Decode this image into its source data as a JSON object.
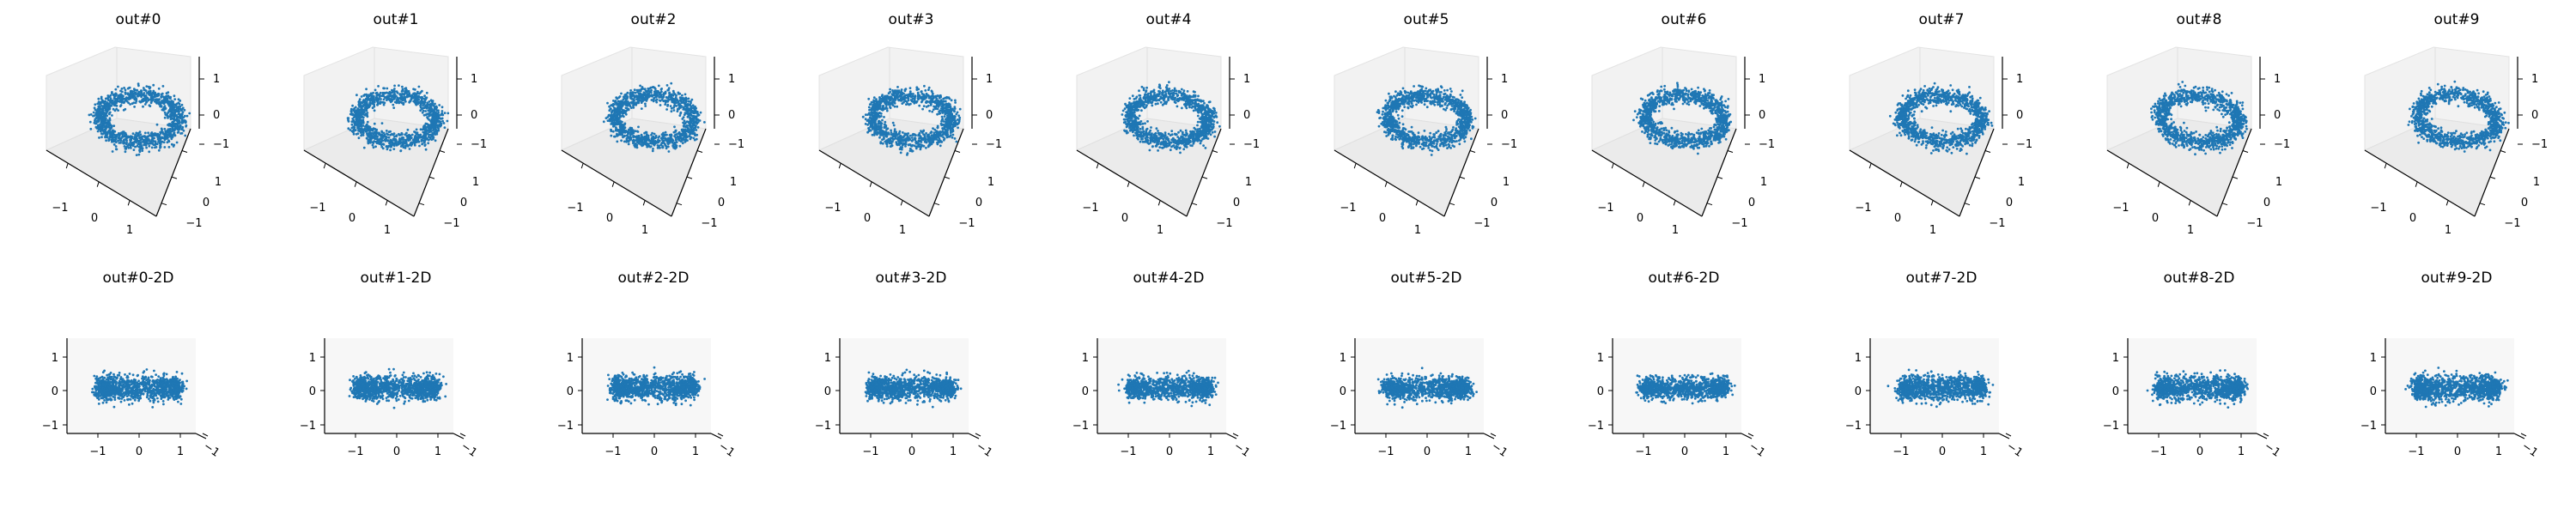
{
  "chart_data": {
    "type": "scatter",
    "rows": [
      {
        "kind": "3d",
        "panels": [
          {
            "title": "out#0",
            "xticks": [
              "−1",
              "0",
              "1"
            ],
            "yticks": [
              "−1",
              "0",
              "1"
            ],
            "zticks": [
              "1",
              "0",
              "−1"
            ],
            "color": "#1f77b4"
          },
          {
            "title": "out#1",
            "xticks": [
              "−1",
              "0",
              "1"
            ],
            "yticks": [
              "−1",
              "0",
              "1"
            ],
            "zticks": [
              "1",
              "0",
              "−1"
            ],
            "color": "#1f77b4"
          },
          {
            "title": "out#2",
            "xticks": [
              "−1",
              "0",
              "1"
            ],
            "yticks": [
              "−1",
              "0",
              "1"
            ],
            "zticks": [
              "1",
              "0",
              "−1"
            ],
            "color": "#1f77b4"
          },
          {
            "title": "out#3",
            "xticks": [
              "−1",
              "0",
              "1"
            ],
            "yticks": [
              "−1",
              "0",
              "1"
            ],
            "zticks": [
              "1",
              "0",
              "−1"
            ],
            "color": "#1f77b4"
          },
          {
            "title": "out#4",
            "xticks": [
              "−1",
              "0",
              "1"
            ],
            "yticks": [
              "−1",
              "0",
              "1"
            ],
            "zticks": [
              "1",
              "0",
              "−1"
            ],
            "color": "#1f77b4"
          },
          {
            "title": "out#5",
            "xticks": [
              "−1",
              "0",
              "1"
            ],
            "yticks": [
              "−1",
              "0",
              "1"
            ],
            "zticks": [
              "1",
              "0",
              "−1"
            ],
            "color": "#1f77b4"
          },
          {
            "title": "out#6",
            "xticks": [
              "−1",
              "0",
              "1"
            ],
            "yticks": [
              "−1",
              "0",
              "1"
            ],
            "zticks": [
              "1",
              "0",
              "−1"
            ],
            "color": "#1f77b4"
          },
          {
            "title": "out#7",
            "xticks": [
              "−1",
              "0",
              "1"
            ],
            "yticks": [
              "−1",
              "0",
              "1"
            ],
            "zticks": [
              "1",
              "0",
              "−1"
            ],
            "color": "#1f77b4"
          },
          {
            "title": "out#8",
            "xticks": [
              "−1",
              "0",
              "1"
            ],
            "yticks": [
              "−1",
              "0",
              "1"
            ],
            "zticks": [
              "1",
              "0",
              "−1"
            ],
            "color": "#1f77b4"
          },
          {
            "title": "out#9",
            "xticks": [
              "−1",
              "0",
              "1"
            ],
            "yticks": [
              "−1",
              "0",
              "1"
            ],
            "zticks": [
              "1",
              "0",
              "−1"
            ],
            "color": "#1f77b4"
          }
        ]
      },
      {
        "kind": "2d",
        "panels": [
          {
            "title": "out#0-2D",
            "xticks": [
              "−1",
              "0",
              "1"
            ],
            "yticks": [
              "1",
              "0",
              "−1"
            ],
            "corner_tick": "−1",
            "color": "#1f77b4"
          },
          {
            "title": "out#1-2D",
            "xticks": [
              "−1",
              "0",
              "1"
            ],
            "yticks": [
              "1",
              "0",
              "−1"
            ],
            "corner_tick": "−1",
            "color": "#1f77b4"
          },
          {
            "title": "out#2-2D",
            "xticks": [
              "−1",
              "0",
              "1"
            ],
            "yticks": [
              "1",
              "0",
              "−1"
            ],
            "corner_tick": "−1",
            "color": "#1f77b4"
          },
          {
            "title": "out#3-2D",
            "xticks": [
              "−1",
              "0",
              "1"
            ],
            "yticks": [
              "1",
              "0",
              "−1"
            ],
            "corner_tick": "−1",
            "color": "#1f77b4"
          },
          {
            "title": "out#4-2D",
            "xticks": [
              "−1",
              "0",
              "1"
            ],
            "yticks": [
              "1",
              "0",
              "−1"
            ],
            "corner_tick": "−1",
            "color": "#1f77b4"
          },
          {
            "title": "out#5-2D",
            "xticks": [
              "−1",
              "0",
              "1"
            ],
            "yticks": [
              "1",
              "0",
              "−1"
            ],
            "corner_tick": "−1",
            "color": "#1f77b4"
          },
          {
            "title": "out#6-2D",
            "xticks": [
              "−1",
              "0",
              "1"
            ],
            "yticks": [
              "1",
              "0",
              "−1"
            ],
            "corner_tick": "−1",
            "color": "#1f77b4"
          },
          {
            "title": "out#7-2D",
            "xticks": [
              "−1",
              "0",
              "1"
            ],
            "yticks": [
              "1",
              "0",
              "−1"
            ],
            "corner_tick": "−1",
            "color": "#1f77b4"
          },
          {
            "title": "out#8-2D",
            "xticks": [
              "−1",
              "0",
              "1"
            ],
            "yticks": [
              "1",
              "0",
              "−1"
            ],
            "corner_tick": "−1",
            "color": "#1f77b4"
          },
          {
            "title": "out#9-2D",
            "xticks": [
              "−1",
              "0",
              "1"
            ],
            "yticks": [
              "1",
              "0",
              "−1"
            ],
            "corner_tick": "−1",
            "color": "#1f77b4"
          }
        ]
      }
    ],
    "xlim": [
      -1.5,
      1.5
    ],
    "ylim": [
      -1.5,
      1.5
    ],
    "zlim": [
      -1.5,
      1.5
    ],
    "point_cloud": {
      "shape": "ring",
      "radius": 1,
      "approx_points_per_panel": 1200
    }
  }
}
